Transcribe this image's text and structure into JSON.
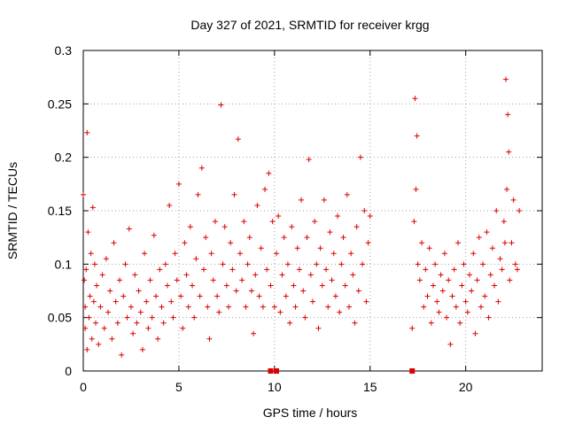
{
  "colors": {
    "series": "#dd0000",
    "grid": "#a0a0a0",
    "axis": "#000000",
    "background": "#ffffff"
  },
  "chart_data": {
    "type": "scatter",
    "title": "Day 327 of 2021, SRMTID for receiver krgg",
    "xlabel": "GPS time / hours",
    "ylabel": "SRMTID / TECUs",
    "xlim": [
      0,
      24
    ],
    "ylim": [
      0,
      0.3
    ],
    "xticks": [
      0,
      5,
      10,
      15,
      20
    ],
    "xtick_labels": [
      "0",
      "5",
      "10",
      "15",
      "20"
    ],
    "yticks": [
      0,
      0.05,
      0.1,
      0.15,
      0.2,
      0.25,
      0.3
    ],
    "ytick_labels": [
      "0",
      "0.05",
      "0.1",
      "0.15",
      "0.2",
      "0.25",
      "0.3"
    ],
    "grid": true,
    "marker": "plus",
    "zero_markers_x": [
      9.8,
      10.1,
      17.2
    ],
    "series": [
      {
        "name": "SRMTID",
        "points": [
          [
            0.0,
            0.165
          ],
          [
            0.05,
            0.085
          ],
          [
            0.1,
            0.06
          ],
          [
            0.1,
            0.04
          ],
          [
            0.15,
            0.095
          ],
          [
            0.2,
            0.223
          ],
          [
            0.2,
            0.02
          ],
          [
            0.25,
            0.13
          ],
          [
            0.3,
            0.05
          ],
          [
            0.35,
            0.07
          ],
          [
            0.4,
            0.11
          ],
          [
            0.45,
            0.03
          ],
          [
            0.5,
            0.153
          ],
          [
            0.55,
            0.065
          ],
          [
            0.6,
            0.1
          ],
          [
            0.65,
            0.045
          ],
          [
            0.7,
            0.08
          ],
          [
            0.8,
            0.025
          ],
          [
            0.9,
            0.06
          ],
          [
            1.0,
            0.09
          ],
          [
            1.1,
            0.04
          ],
          [
            1.2,
            0.105
          ],
          [
            1.3,
            0.055
          ],
          [
            1.4,
            0.075
          ],
          [
            1.5,
            0.03
          ],
          [
            1.6,
            0.12
          ],
          [
            1.7,
            0.065
          ],
          [
            1.8,
            0.045
          ],
          [
            1.9,
            0.085
          ],
          [
            2.0,
            0.015
          ],
          [
            2.1,
            0.07
          ],
          [
            2.2,
            0.1
          ],
          [
            2.3,
            0.05
          ],
          [
            2.4,
            0.133
          ],
          [
            2.5,
            0.06
          ],
          [
            2.6,
            0.035
          ],
          [
            2.7,
            0.09
          ],
          [
            2.8,
            0.045
          ],
          [
            2.9,
            0.075
          ],
          [
            3.0,
            0.055
          ],
          [
            3.1,
            0.02
          ],
          [
            3.2,
            0.11
          ],
          [
            3.3,
            0.065
          ],
          [
            3.4,
            0.04
          ],
          [
            3.5,
            0.085
          ],
          [
            3.6,
            0.05
          ],
          [
            3.7,
            0.127
          ],
          [
            3.8,
            0.07
          ],
          [
            3.9,
            0.03
          ],
          [
            4.0,
            0.095
          ],
          [
            4.1,
            0.06
          ],
          [
            4.2,
            0.045
          ],
          [
            4.3,
            0.1
          ],
          [
            4.4,
            0.08
          ],
          [
            4.5,
            0.155
          ],
          [
            4.6,
            0.065
          ],
          [
            4.7,
            0.05
          ],
          [
            4.8,
            0.11
          ],
          [
            4.9,
            0.085
          ],
          [
            5.0,
            0.175
          ],
          [
            5.1,
            0.07
          ],
          [
            5.2,
            0.04
          ],
          [
            5.3,
            0.12
          ],
          [
            5.4,
            0.09
          ],
          [
            5.5,
            0.06
          ],
          [
            5.6,
            0.135
          ],
          [
            5.7,
            0.08
          ],
          [
            5.8,
            0.05
          ],
          [
            5.9,
            0.105
          ],
          [
            6.0,
            0.165
          ],
          [
            6.1,
            0.07
          ],
          [
            6.2,
            0.19
          ],
          [
            6.3,
            0.095
          ],
          [
            6.4,
            0.125
          ],
          [
            6.5,
            0.06
          ],
          [
            6.6,
            0.03
          ],
          [
            6.7,
            0.11
          ],
          [
            6.8,
            0.085
          ],
          [
            6.9,
            0.14
          ],
          [
            7.0,
            0.07
          ],
          [
            7.1,
            0.055
          ],
          [
            7.2,
            0.249
          ],
          [
            7.3,
            0.1
          ],
          [
            7.4,
            0.135
          ],
          [
            7.5,
            0.08
          ],
          [
            7.6,
            0.06
          ],
          [
            7.7,
            0.12
          ],
          [
            7.8,
            0.095
          ],
          [
            7.9,
            0.165
          ],
          [
            8.0,
            0.075
          ],
          [
            8.1,
            0.217
          ],
          [
            8.2,
            0.11
          ],
          [
            8.3,
            0.085
          ],
          [
            8.4,
            0.14
          ],
          [
            8.5,
            0.06
          ],
          [
            8.6,
            0.1
          ],
          [
            8.7,
            0.125
          ],
          [
            8.8,
            0.075
          ],
          [
            8.9,
            0.035
          ],
          [
            9.0,
            0.09
          ],
          [
            9.1,
            0.155
          ],
          [
            9.2,
            0.07
          ],
          [
            9.3,
            0.115
          ],
          [
            9.4,
            0.06
          ],
          [
            9.5,
            0.17
          ],
          [
            9.6,
            0.095
          ],
          [
            9.7,
            0.185
          ],
          [
            9.8,
            0.08
          ],
          [
            9.9,
            0.14
          ],
          [
            10.0,
            0.06
          ],
          [
            10.1,
            0.11
          ],
          [
            10.2,
            0.145
          ],
          [
            10.3,
            0.055
          ],
          [
            10.4,
            0.09
          ],
          [
            10.5,
            0.125
          ],
          [
            10.6,
            0.07
          ],
          [
            10.7,
            0.1
          ],
          [
            10.8,
            0.045
          ],
          [
            10.9,
            0.135
          ],
          [
            11.0,
            0.08
          ],
          [
            11.1,
            0.06
          ],
          [
            11.2,
            0.115
          ],
          [
            11.3,
            0.095
          ],
          [
            11.4,
            0.16
          ],
          [
            11.5,
            0.075
          ],
          [
            11.6,
            0.05
          ],
          [
            11.7,
            0.125
          ],
          [
            11.8,
            0.198
          ],
          [
            11.9,
            0.09
          ],
          [
            12.0,
            0.065
          ],
          [
            12.1,
            0.14
          ],
          [
            12.2,
            0.1
          ],
          [
            12.3,
            0.04
          ],
          [
            12.4,
            0.115
          ],
          [
            12.5,
            0.08
          ],
          [
            12.6,
            0.16
          ],
          [
            12.7,
            0.095
          ],
          [
            12.8,
            0.06
          ],
          [
            12.9,
            0.13
          ],
          [
            13.0,
            0.085
          ],
          [
            13.1,
            0.11
          ],
          [
            13.2,
            0.07
          ],
          [
            13.3,
            0.145
          ],
          [
            13.4,
            0.055
          ],
          [
            13.5,
            0.1
          ],
          [
            13.6,
            0.125
          ],
          [
            13.7,
            0.08
          ],
          [
            13.8,
            0.165
          ],
          [
            13.9,
            0.06
          ],
          [
            14.0,
            0.11
          ],
          [
            14.1,
            0.09
          ],
          [
            14.2,
            0.045
          ],
          [
            14.3,
            0.135
          ],
          [
            14.4,
            0.075
          ],
          [
            14.5,
            0.2
          ],
          [
            14.6,
            0.1
          ],
          [
            14.7,
            0.15
          ],
          [
            14.8,
            0.065
          ],
          [
            14.9,
            0.12
          ],
          [
            15.0,
            0.145
          ],
          [
            17.2,
            0.04
          ],
          [
            17.3,
            0.14
          ],
          [
            17.35,
            0.255
          ],
          [
            17.4,
            0.17
          ],
          [
            17.45,
            0.22
          ],
          [
            17.5,
            0.1
          ],
          [
            17.6,
            0.085
          ],
          [
            17.7,
            0.12
          ],
          [
            17.8,
            0.06
          ],
          [
            17.9,
            0.095
          ],
          [
            18.0,
            0.07
          ],
          [
            18.1,
            0.115
          ],
          [
            18.2,
            0.045
          ],
          [
            18.3,
            0.08
          ],
          [
            18.4,
            0.1
          ],
          [
            18.5,
            0.065
          ],
          [
            18.6,
            0.055
          ],
          [
            18.7,
            0.09
          ],
          [
            18.8,
            0.075
          ],
          [
            18.9,
            0.11
          ],
          [
            19.0,
            0.05
          ],
          [
            19.1,
            0.085
          ],
          [
            19.2,
            0.025
          ],
          [
            19.3,
            0.07
          ],
          [
            19.4,
            0.095
          ],
          [
            19.5,
            0.06
          ],
          [
            19.6,
            0.12
          ],
          [
            19.7,
            0.045
          ],
          [
            19.8,
            0.08
          ],
          [
            19.9,
            0.1
          ],
          [
            20.0,
            0.065
          ],
          [
            20.1,
            0.055
          ],
          [
            20.2,
            0.09
          ],
          [
            20.3,
            0.075
          ],
          [
            20.4,
            0.11
          ],
          [
            20.5,
            0.035
          ],
          [
            20.6,
            0.085
          ],
          [
            20.7,
            0.125
          ],
          [
            20.8,
            0.06
          ],
          [
            20.9,
            0.1
          ],
          [
            21.0,
            0.07
          ],
          [
            21.1,
            0.13
          ],
          [
            21.2,
            0.05
          ],
          [
            21.3,
            0.09
          ],
          [
            21.4,
            0.115
          ],
          [
            21.5,
            0.08
          ],
          [
            21.6,
            0.15
          ],
          [
            21.7,
            0.065
          ],
          [
            21.8,
            0.105
          ],
          [
            21.9,
            0.095
          ],
          [
            22.0,
            0.14
          ],
          [
            22.05,
            0.12
          ],
          [
            22.1,
            0.273
          ],
          [
            22.15,
            0.17
          ],
          [
            22.2,
            0.24
          ],
          [
            22.25,
            0.205
          ],
          [
            22.3,
            0.085
          ],
          [
            22.4,
            0.12
          ],
          [
            22.5,
            0.16
          ],
          [
            22.6,
            0.1
          ],
          [
            22.7,
            0.095
          ],
          [
            22.8,
            0.15
          ]
        ]
      }
    ]
  }
}
